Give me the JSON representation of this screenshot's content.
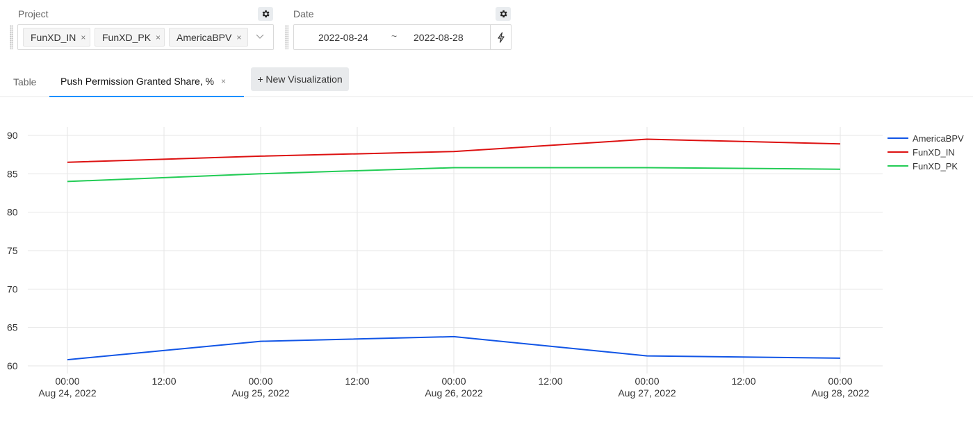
{
  "filters": {
    "project": {
      "label": "Project",
      "tags": [
        "FunXD_IN",
        "FunXD_PK",
        "AmericaBPV"
      ],
      "close_glyph": "×"
    },
    "date": {
      "label": "Date",
      "start": "2022-08-24",
      "separator": "~",
      "end": "2022-08-28"
    },
    "icons": [
      "gear-icon",
      "chevron-down-icon",
      "bolt-icon",
      "close-icon"
    ]
  },
  "tabs": {
    "table_label": "Table",
    "active_label": "Push Permission Granted Share, %",
    "close_glyph": "×",
    "new_vis_label": "+ New Visualization",
    "active_color": "#1890ff"
  },
  "chart_data": {
    "type": "line",
    "title": "",
    "xlabel": "",
    "ylabel": "",
    "x": [
      "2022-08-24 00:00",
      "2022-08-25 00:00",
      "2022-08-26 00:00",
      "2022-08-27 00:00",
      "2022-08-28 00:00"
    ],
    "x_ticks": [
      {
        "time": "00:00",
        "date": "Aug 24, 2022"
      },
      {
        "time": "12:00",
        "date": ""
      },
      {
        "time": "00:00",
        "date": "Aug 25, 2022"
      },
      {
        "time": "12:00",
        "date": ""
      },
      {
        "time": "00:00",
        "date": "Aug 26, 2022"
      },
      {
        "time": "12:00",
        "date": ""
      },
      {
        "time": "00:00",
        "date": "Aug 27, 2022"
      },
      {
        "time": "12:00",
        "date": ""
      },
      {
        "time": "00:00",
        "date": "Aug 28, 2022"
      }
    ],
    "y_ticks": [
      60,
      65,
      70,
      75,
      80,
      85,
      90
    ],
    "ylim": [
      60,
      90
    ],
    "grid": true,
    "legend_position": "right",
    "series": [
      {
        "name": "AmericaBPV",
        "color": "#1155e6",
        "values": [
          60.8,
          63.2,
          63.8,
          61.3,
          61.0
        ]
      },
      {
        "name": "FunXD_IN",
        "color": "#dd1111",
        "values": [
          86.5,
          87.3,
          87.9,
          89.5,
          88.9
        ]
      },
      {
        "name": "FunXD_PK",
        "color": "#22cc55",
        "values": [
          84.0,
          85.0,
          85.8,
          85.8,
          85.6
        ]
      }
    ]
  }
}
